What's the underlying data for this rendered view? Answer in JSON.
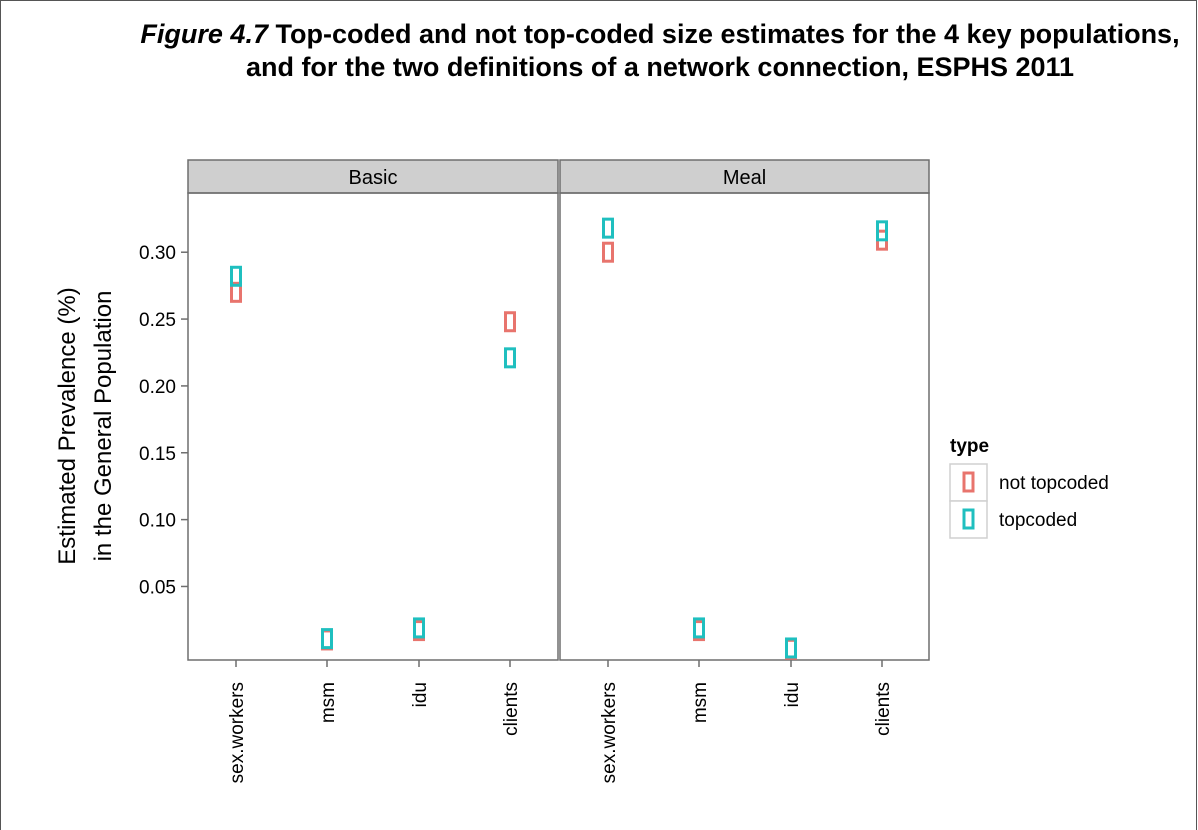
{
  "title": {
    "figure_label": "Figure 4.7",
    "text": "Top-coded and not top-coded size estimates for the 4 key populations, and for the two definitions of a network connection, ESPHS 2011"
  },
  "chart_data": {
    "type": "scatter",
    "ylabel_lines": [
      "Estimated Prevalence (%)",
      "in the General Population"
    ],
    "categories": [
      "sex.workers",
      "msm",
      "idu",
      "clients"
    ],
    "yticks": [
      "0.05",
      "0.10",
      "0.15",
      "0.20",
      "0.25",
      "0.30"
    ],
    "ylim": [
      -0.005,
      0.345
    ],
    "legend": {
      "title": "type",
      "placement": "right",
      "entries": [
        {
          "label": "not topcoded",
          "color": "#E8746D"
        },
        {
          "label": "topcoded",
          "color": "#1FBFBF"
        }
      ]
    },
    "panels": [
      {
        "name": "Basic",
        "series": [
          {
            "name": "not topcoded",
            "values": [
              0.27,
              0.01,
              0.017,
              0.248
            ]
          },
          {
            "name": "topcoded",
            "values": [
              0.282,
              0.011,
              0.019,
              0.221
            ]
          }
        ]
      },
      {
        "name": "Meal",
        "series": [
          {
            "name": "not topcoded",
            "values": [
              0.3,
              0.017,
              0.003,
              0.309
            ]
          },
          {
            "name": "topcoded",
            "values": [
              0.318,
              0.019,
              0.004,
              0.316
            ]
          }
        ]
      }
    ]
  }
}
